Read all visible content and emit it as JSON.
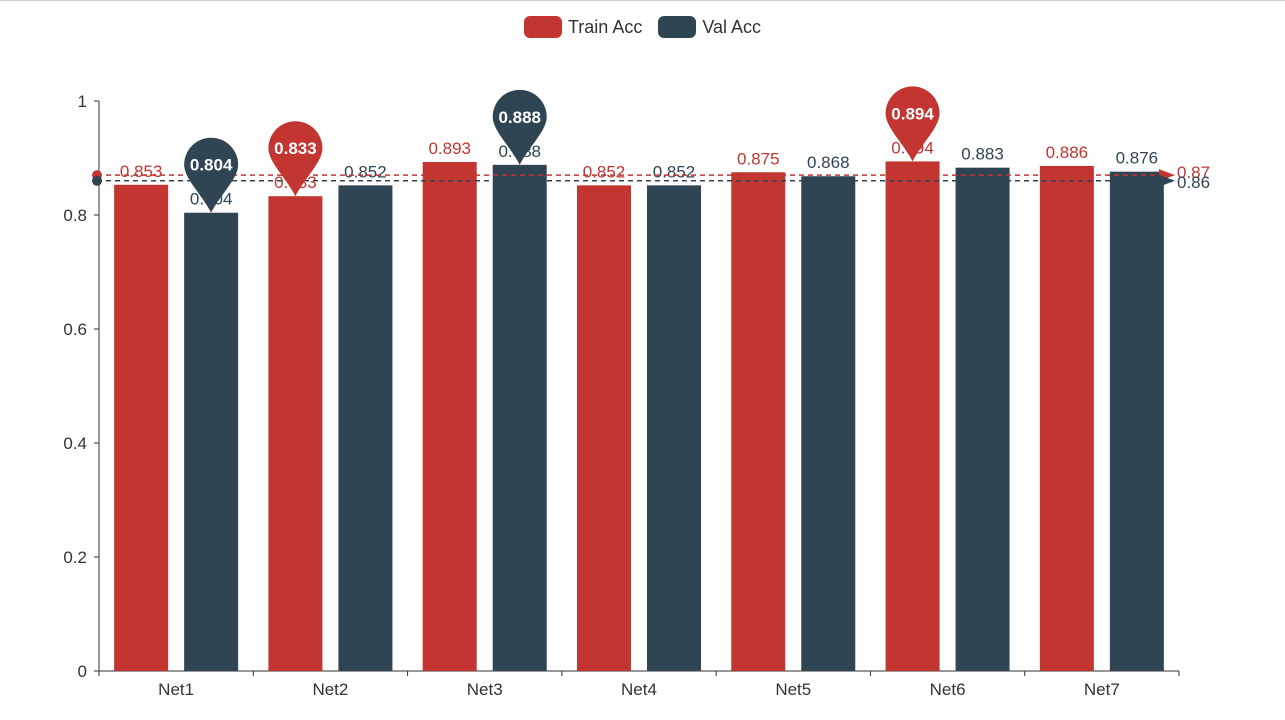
{
  "chart_data": {
    "type": "bar",
    "categories": [
      "Net1",
      "Net2",
      "Net3",
      "Net4",
      "Net5",
      "Net6",
      "Net7"
    ],
    "series": [
      {
        "name": "Train Acc",
        "values": [
          0.853,
          0.833,
          0.893,
          0.852,
          0.875,
          0.894,
          0.886
        ],
        "color": "#c23531",
        "min_marker": "0.833",
        "max_marker": "0.894",
        "average": 0.87,
        "average_label": "0.87"
      },
      {
        "name": "Val Acc",
        "values": [
          0.804,
          0.852,
          0.888,
          0.852,
          0.868,
          0.883,
          0.876
        ],
        "color": "#2f4554",
        "min_marker": "0.804",
        "max_marker": "0.888",
        "average": 0.86,
        "average_label": "0.86"
      }
    ],
    "ylim": [
      0,
      1
    ],
    "yticks": [
      "0",
      "0.2",
      "0.4",
      "0.6",
      "0.8",
      "1"
    ],
    "ytick_values": [
      0,
      0.2,
      0.4,
      0.6,
      0.8,
      1
    ],
    "legend_position": "top-center",
    "grid": false
  }
}
